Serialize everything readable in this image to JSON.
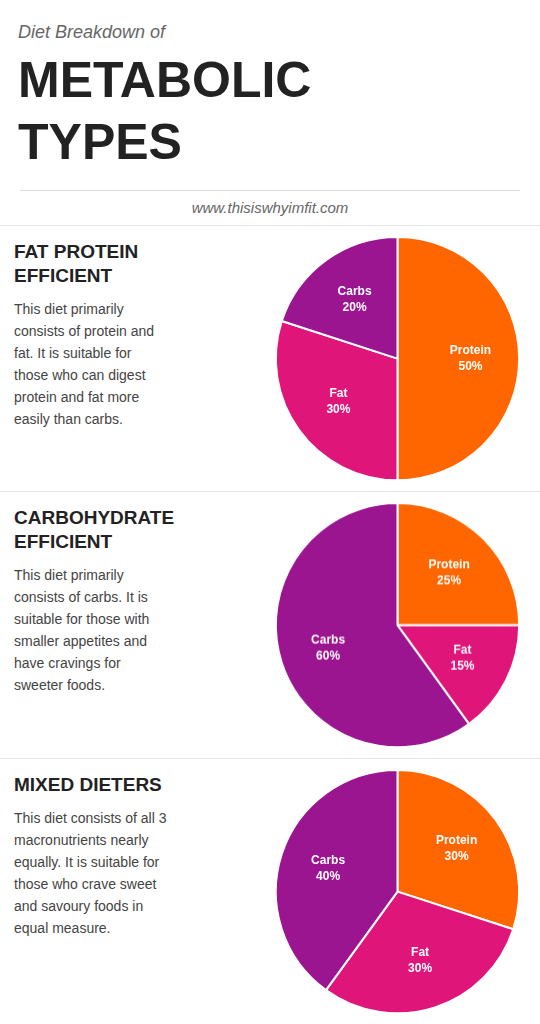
{
  "title": [
    "Diet Breakdown of",
    "METABOLIC",
    "TYPES"
  ],
  "subtitle": "www.thisiswhyimfit.com",
  "chart_data": [
    {
      "type": "pie",
      "title": [
        "FAT PROTEIN",
        "EFFICIENT"
      ],
      "annotations": [
        "This diet primarily\nconsists of protein and\nfat. It is suitable for\nthose who can digest\nprotein and fat more\neasily than carbs."
      ],
      "categories": [
        "Protein",
        "Fat",
        "Carbs"
      ],
      "values": [
        50,
        30,
        20
      ],
      "value_labels": [
        "50%",
        "30%",
        "20%"
      ],
      "colors": [
        "#ff6600",
        "#e0157a",
        "#9b1490"
      ],
      "data_labels": true
    },
    {
      "type": "pie",
      "title": [
        "CARBOHYDRATE",
        "EFFICIENT"
      ],
      "annotations": [
        "This diet primarily\nconsists of carbs. It is\nsuitable for those with\nsmaller appetites and\nhave cravings for\nsweeter foods."
      ],
      "categories": [
        "Protein",
        "Fat",
        "Carbs"
      ],
      "values": [
        25,
        15,
        60
      ],
      "value_labels": [
        "25%",
        "15%",
        "60%"
      ],
      "colors": [
        "#ff6600",
        "#e0157a",
        "#9b1490"
      ],
      "data_labels": true
    },
    {
      "type": "pie",
      "title": [
        "MIXED DIETERS"
      ],
      "annotations": [
        "This diet consists of all 3\nmacronutrients nearly\nequally. It is suitable for\nthose who crave sweet\nand savoury foods in\nequal measure."
      ],
      "categories": [
        "Protein",
        "Fat",
        "Carbs"
      ],
      "values": [
        30,
        30,
        40
      ],
      "value_labels": [
        "30%",
        "30%",
        "40%"
      ],
      "colors": [
        "#ff6600",
        "#e0157a",
        "#9b1490"
      ],
      "data_labels": true
    }
  ]
}
